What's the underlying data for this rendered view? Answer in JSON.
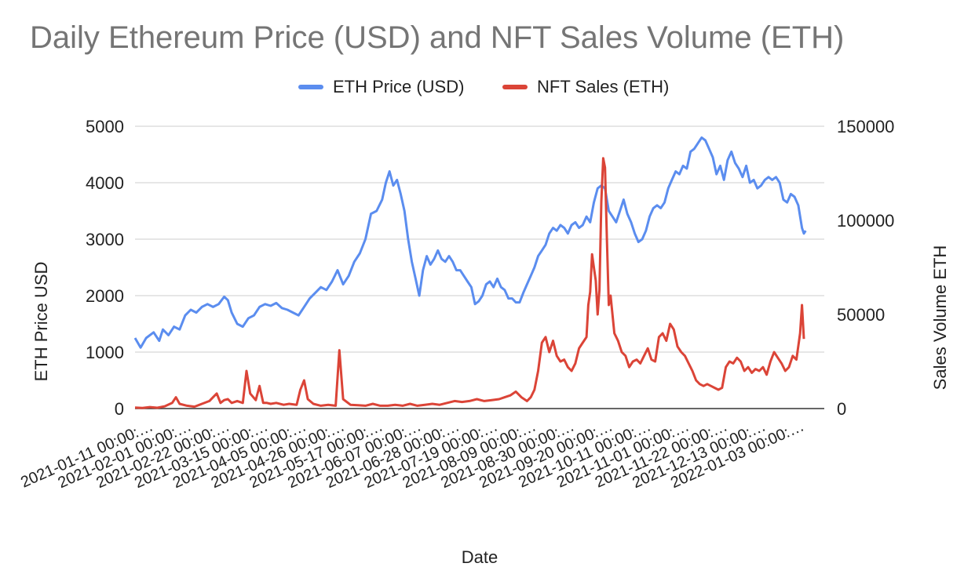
{
  "chart_data": {
    "type": "line",
    "title": "Daily Ethereum Price (USD) and NFT Sales Volume (ETH)",
    "xlabel": "Date",
    "ylabel_left": "ETH Price USD",
    "ylabel_right": "Sales Volume ETH",
    "ylim_left": [
      0,
      5000
    ],
    "ylim_right": [
      0,
      150000
    ],
    "yticks_left": [
      "0",
      "1000",
      "2000",
      "3000",
      "4000",
      "5000"
    ],
    "yticks_right": [
      "0",
      "50000",
      "100000",
      "150000"
    ],
    "grid": true,
    "legend_position": "top-center",
    "categories": [
      "2021-01-11 00:00:…",
      "2021-02-01 00:00:…",
      "2021-02-22 00:00:…",
      "2021-03-15 00:00:…",
      "2021-04-05 00:00:…",
      "2021-04-26 00:00:…",
      "2021-05-17 00:00:…",
      "2021-06-07 00:00:…",
      "2021-06-28 00:00:…",
      "2021-07-19 00:00:…",
      "2021-08-09 00:00:…",
      "2021-08-30 00:00:…",
      "2021-09-20 00:00:…",
      "2021-10-11 00:00:…",
      "2021-11-01 00:00:…",
      "2021-11-22 00:00:…",
      "2021-12-13 00:00:…",
      "2022-01-03 00:00:…"
    ],
    "x_days_range": [
      0,
      371
    ],
    "series": [
      {
        "name": "ETH Price (USD)",
        "axis": "left",
        "color": "#5B8DEF",
        "points": [
          [
            0,
            1250
          ],
          [
            3,
            1080
          ],
          [
            6,
            1250
          ],
          [
            10,
            1350
          ],
          [
            13,
            1200
          ],
          [
            15,
            1400
          ],
          [
            18,
            1300
          ],
          [
            21,
            1450
          ],
          [
            24,
            1400
          ],
          [
            27,
            1650
          ],
          [
            30,
            1750
          ],
          [
            33,
            1700
          ],
          [
            36,
            1800
          ],
          [
            39,
            1850
          ],
          [
            42,
            1800
          ],
          [
            45,
            1850
          ],
          [
            48,
            1980
          ],
          [
            50,
            1920
          ],
          [
            52,
            1700
          ],
          [
            55,
            1500
          ],
          [
            58,
            1450
          ],
          [
            61,
            1600
          ],
          [
            64,
            1650
          ],
          [
            67,
            1800
          ],
          [
            70,
            1850
          ],
          [
            73,
            1820
          ],
          [
            76,
            1870
          ],
          [
            79,
            1780
          ],
          [
            82,
            1750
          ],
          [
            85,
            1700
          ],
          [
            88,
            1650
          ],
          [
            91,
            1800
          ],
          [
            94,
            1950
          ],
          [
            97,
            2050
          ],
          [
            100,
            2150
          ],
          [
            103,
            2100
          ],
          [
            106,
            2250
          ],
          [
            109,
            2450
          ],
          [
            112,
            2200
          ],
          [
            115,
            2350
          ],
          [
            118,
            2600
          ],
          [
            121,
            2750
          ],
          [
            124,
            3000
          ],
          [
            127,
            3450
          ],
          [
            130,
            3500
          ],
          [
            133,
            3700
          ],
          [
            135,
            4000
          ],
          [
            137,
            4200
          ],
          [
            139,
            3950
          ],
          [
            141,
            4050
          ],
          [
            143,
            3800
          ],
          [
            145,
            3500
          ],
          [
            147,
            3000
          ],
          [
            149,
            2600
          ],
          [
            151,
            2300
          ],
          [
            153,
            2000
          ],
          [
            155,
            2450
          ],
          [
            157,
            2700
          ],
          [
            159,
            2550
          ],
          [
            161,
            2650
          ],
          [
            163,
            2800
          ],
          [
            165,
            2650
          ],
          [
            167,
            2600
          ],
          [
            169,
            2700
          ],
          [
            171,
            2600
          ],
          [
            173,
            2450
          ],
          [
            175,
            2450
          ],
          [
            177,
            2350
          ],
          [
            179,
            2250
          ],
          [
            181,
            2150
          ],
          [
            183,
            1850
          ],
          [
            185,
            1900
          ],
          [
            187,
            2000
          ],
          [
            189,
            2200
          ],
          [
            191,
            2250
          ],
          [
            193,
            2150
          ],
          [
            195,
            2300
          ],
          [
            197,
            2150
          ],
          [
            199,
            2100
          ],
          [
            201,
            1950
          ],
          [
            203,
            1950
          ],
          [
            205,
            1880
          ],
          [
            207,
            1880
          ],
          [
            209,
            2050
          ],
          [
            211,
            2200
          ],
          [
            213,
            2350
          ],
          [
            215,
            2500
          ],
          [
            217,
            2700
          ],
          [
            219,
            2800
          ],
          [
            221,
            2900
          ],
          [
            223,
            3100
          ],
          [
            225,
            3200
          ],
          [
            227,
            3150
          ],
          [
            229,
            3250
          ],
          [
            231,
            3200
          ],
          [
            233,
            3100
          ],
          [
            235,
            3250
          ],
          [
            237,
            3300
          ],
          [
            239,
            3200
          ],
          [
            241,
            3250
          ],
          [
            243,
            3400
          ],
          [
            245,
            3300
          ],
          [
            247,
            3650
          ],
          [
            249,
            3900
          ],
          [
            251,
            3950
          ],
          [
            253,
            3900
          ],
          [
            255,
            3500
          ],
          [
            257,
            3400
          ],
          [
            259,
            3300
          ],
          [
            261,
            3500
          ],
          [
            263,
            3700
          ],
          [
            265,
            3450
          ],
          [
            267,
            3300
          ],
          [
            269,
            3100
          ],
          [
            271,
            2950
          ],
          [
            273,
            3000
          ],
          [
            275,
            3150
          ],
          [
            277,
            3400
          ],
          [
            279,
            3550
          ],
          [
            281,
            3600
          ],
          [
            283,
            3550
          ],
          [
            285,
            3650
          ],
          [
            287,
            3900
          ],
          [
            289,
            4050
          ],
          [
            291,
            4200
          ],
          [
            293,
            4150
          ],
          [
            295,
            4300
          ],
          [
            297,
            4250
          ],
          [
            299,
            4550
          ],
          [
            301,
            4600
          ],
          [
            303,
            4700
          ],
          [
            305,
            4800
          ],
          [
            307,
            4750
          ],
          [
            309,
            4600
          ],
          [
            311,
            4450
          ],
          [
            313,
            4150
          ],
          [
            315,
            4300
          ],
          [
            317,
            4050
          ],
          [
            319,
            4400
          ],
          [
            321,
            4550
          ],
          [
            323,
            4350
          ],
          [
            325,
            4250
          ],
          [
            327,
            4100
          ],
          [
            329,
            4300
          ],
          [
            331,
            4000
          ],
          [
            333,
            4050
          ],
          [
            335,
            3900
          ],
          [
            337,
            3950
          ],
          [
            339,
            4050
          ],
          [
            341,
            4100
          ],
          [
            343,
            4050
          ],
          [
            345,
            4100
          ],
          [
            347,
            4000
          ],
          [
            349,
            3700
          ],
          [
            351,
            3650
          ],
          [
            353,
            3800
          ],
          [
            355,
            3750
          ],
          [
            357,
            3600
          ],
          [
            359,
            3200
          ],
          [
            360,
            3100
          ],
          [
            361,
            3150
          ]
        ]
      },
      {
        "name": "NFT Sales (ETH)",
        "axis": "right",
        "color": "#DB4437",
        "points": [
          [
            0,
            500
          ],
          [
            4,
            300
          ],
          [
            8,
            800
          ],
          [
            12,
            400
          ],
          [
            16,
            1200
          ],
          [
            20,
            3000
          ],
          [
            22,
            6000
          ],
          [
            24,
            2500
          ],
          [
            28,
            1500
          ],
          [
            32,
            1000
          ],
          [
            36,
            2500
          ],
          [
            40,
            4000
          ],
          [
            42,
            6000
          ],
          [
            44,
            8000
          ],
          [
            46,
            3000
          ],
          [
            48,
            4500
          ],
          [
            50,
            5000
          ],
          [
            52,
            3000
          ],
          [
            55,
            4000
          ],
          [
            58,
            3000
          ],
          [
            60,
            20000
          ],
          [
            62,
            8000
          ],
          [
            65,
            4500
          ],
          [
            67,
            12000
          ],
          [
            69,
            3000
          ],
          [
            71,
            3000
          ],
          [
            73,
            2500
          ],
          [
            76,
            3000
          ],
          [
            80,
            2000
          ],
          [
            83,
            2500
          ],
          [
            87,
            2000
          ],
          [
            89,
            10000
          ],
          [
            91,
            15000
          ],
          [
            93,
            5000
          ],
          [
            96,
            2500
          ],
          [
            100,
            1500
          ],
          [
            104,
            2000
          ],
          [
            108,
            1500
          ],
          [
            110,
            31000
          ],
          [
            112,
            5000
          ],
          [
            116,
            2000
          ],
          [
            120,
            1800
          ],
          [
            124,
            1500
          ],
          [
            128,
            2500
          ],
          [
            132,
            1500
          ],
          [
            136,
            1500
          ],
          [
            140,
            2000
          ],
          [
            144,
            1500
          ],
          [
            148,
            2500
          ],
          [
            152,
            1500
          ],
          [
            156,
            2000
          ],
          [
            160,
            2500
          ],
          [
            164,
            2000
          ],
          [
            168,
            3000
          ],
          [
            172,
            4000
          ],
          [
            176,
            3500
          ],
          [
            180,
            4000
          ],
          [
            184,
            5000
          ],
          [
            188,
            4000
          ],
          [
            192,
            4500
          ],
          [
            196,
            5000
          ],
          [
            199,
            6000
          ],
          [
            202,
            7000
          ],
          [
            205,
            9000
          ],
          [
            208,
            6000
          ],
          [
            211,
            4000
          ],
          [
            213,
            6000
          ],
          [
            215,
            10000
          ],
          [
            217,
            20000
          ],
          [
            219,
            35000
          ],
          [
            221,
            38000
          ],
          [
            223,
            30000
          ],
          [
            225,
            36000
          ],
          [
            227,
            28000
          ],
          [
            229,
            25000
          ],
          [
            231,
            26000
          ],
          [
            233,
            22000
          ],
          [
            235,
            20000
          ],
          [
            237,
            24000
          ],
          [
            239,
            32000
          ],
          [
            241,
            35000
          ],
          [
            243,
            38000
          ],
          [
            244,
            55000
          ],
          [
            245,
            62000
          ],
          [
            246,
            82000
          ],
          [
            247,
            75000
          ],
          [
            248,
            68000
          ],
          [
            249,
            50000
          ],
          [
            250,
            63000
          ],
          [
            251,
            110000
          ],
          [
            252,
            133000
          ],
          [
            253,
            128000
          ],
          [
            254,
            90000
          ],
          [
            255,
            55000
          ],
          [
            256,
            60000
          ],
          [
            257,
            50000
          ],
          [
            258,
            40000
          ],
          [
            260,
            36000
          ],
          [
            262,
            30000
          ],
          [
            264,
            28000
          ],
          [
            266,
            22000
          ],
          [
            268,
            25000
          ],
          [
            270,
            26000
          ],
          [
            272,
            24000
          ],
          [
            274,
            28000
          ],
          [
            276,
            32000
          ],
          [
            278,
            26000
          ],
          [
            280,
            25000
          ],
          [
            282,
            38000
          ],
          [
            284,
            40000
          ],
          [
            286,
            36000
          ],
          [
            288,
            45000
          ],
          [
            290,
            42000
          ],
          [
            292,
            33000
          ],
          [
            294,
            30000
          ],
          [
            296,
            28000
          ],
          [
            298,
            24000
          ],
          [
            300,
            20000
          ],
          [
            302,
            15000
          ],
          [
            304,
            13000
          ],
          [
            306,
            12000
          ],
          [
            308,
            13000
          ],
          [
            310,
            12000
          ],
          [
            312,
            11000
          ],
          [
            314,
            10000
          ],
          [
            316,
            11000
          ],
          [
            318,
            22000
          ],
          [
            320,
            25000
          ],
          [
            322,
            24000
          ],
          [
            324,
            27000
          ],
          [
            326,
            25000
          ],
          [
            328,
            20000
          ],
          [
            330,
            22000
          ],
          [
            332,
            19000
          ],
          [
            334,
            21000
          ],
          [
            336,
            20000
          ],
          [
            338,
            22000
          ],
          [
            340,
            18000
          ],
          [
            342,
            25000
          ],
          [
            344,
            30000
          ],
          [
            346,
            27000
          ],
          [
            348,
            24000
          ],
          [
            350,
            20000
          ],
          [
            352,
            22000
          ],
          [
            354,
            28000
          ],
          [
            356,
            26000
          ],
          [
            358,
            40000
          ],
          [
            359,
            55000
          ],
          [
            360,
            37000
          ]
        ]
      }
    ]
  }
}
